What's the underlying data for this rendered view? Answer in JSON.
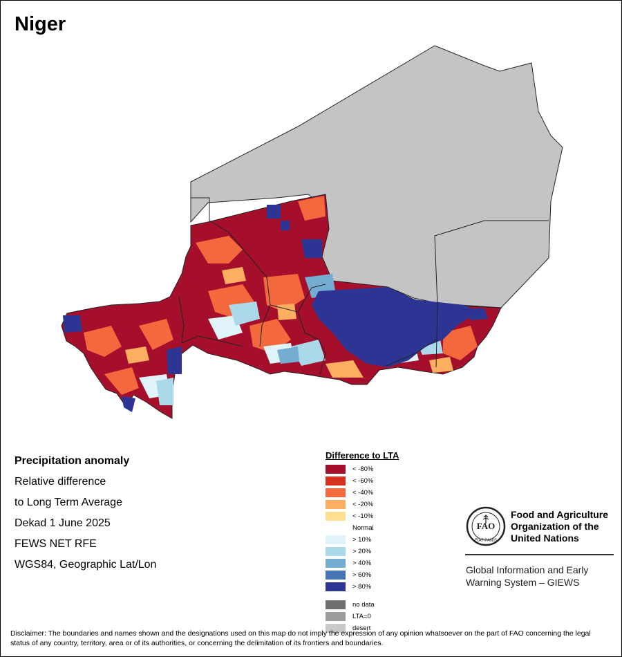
{
  "map": {
    "title": "Niger",
    "colors": {
      "desert": "#c4c4c4",
      "outline": "#222222"
    }
  },
  "info": {
    "heading": "Precipitation anomaly",
    "lines": [
      "Relative difference",
      "to Long Term Average",
      "Dekad 1 June 2025",
      "FEWS NET RFE",
      "WGS84, Geographic Lat/Lon"
    ]
  },
  "legend": {
    "title": "Difference to LTA",
    "dry": [
      {
        "label": "< -80%",
        "color": "#a50f2b"
      },
      {
        "label": "< -60%",
        "color": "#d7301f"
      },
      {
        "label": "< -40%",
        "color": "#f4683e"
      },
      {
        "label": "< -20%",
        "color": "#fdae61"
      },
      {
        "label": "< -10%",
        "color": "#fee090"
      }
    ],
    "normal_label": "Normal",
    "wet": [
      {
        "label": "> 10%",
        "color": "#e0f3f8"
      },
      {
        "label": "> 20%",
        "color": "#abd9e9"
      },
      {
        "label": "> 40%",
        "color": "#74add1"
      },
      {
        "label": "> 60%",
        "color": "#4575b4"
      },
      {
        "label": "> 80%",
        "color": "#2c3593"
      }
    ],
    "other": [
      {
        "label": "no data",
        "color": "#6e6e6e"
      },
      {
        "label": "LTA=0",
        "color": "#9c9c9c"
      },
      {
        "label": "desert",
        "color": "#c8c8c8"
      }
    ]
  },
  "fao": {
    "logo_text": "FAO",
    "motto": "FIAT PANIS",
    "name": "Food and Agriculture Organization of the United Nations",
    "subtitle": "Global Information and Early Warning System – GIEWS"
  },
  "disclaimer": "Disclaimer: The boundaries and names shown and the designations used on this map do not imply the expression of any opinion whatsoever on the part of FAO concerning the legal status of any country, territory, area or of its authorities, or concerning the delimitation of its frontiers and boundaries."
}
